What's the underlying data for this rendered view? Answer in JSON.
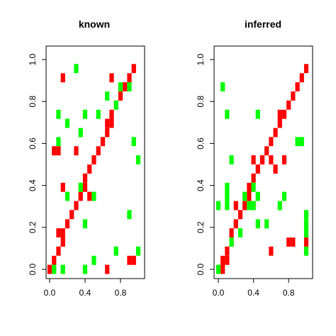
{
  "chart_data": [
    {
      "type": "heatmap",
      "title": "known",
      "xlabel": "",
      "ylabel": "",
      "xlim": [
        0,
        1
      ],
      "ylim": [
        0,
        1
      ],
      "x_ticks": [
        "0.0",
        "0.4",
        "0.8"
      ],
      "x_tick_values": [
        0.0,
        0.4,
        0.8
      ],
      "y_ticks": [
        "0.0",
        "0.2",
        "0.4",
        "0.6",
        "0.8",
        "1.0"
      ],
      "y_tick_values": [
        0.0,
        0.2,
        0.4,
        0.6,
        0.8,
        1.0
      ],
      "grid": false,
      "cell_width": 0.05,
      "cell_height": 0.0435,
      "colors": {
        "red": "#ff0000",
        "green": "#00ff00"
      },
      "cells": [
        {
          "x": 0.0,
          "y": 0.0,
          "color": "red"
        },
        {
          "x": 0.05,
          "y": 0.043,
          "color": "red"
        },
        {
          "x": 0.1,
          "y": 0.087,
          "color": "red"
        },
        {
          "x": 0.15,
          "y": 0.13,
          "color": "red"
        },
        {
          "x": 0.1,
          "y": 0.174,
          "color": "red"
        },
        {
          "x": 0.15,
          "y": 0.174,
          "color": "red"
        },
        {
          "x": 0.2,
          "y": 0.217,
          "color": "red"
        },
        {
          "x": 0.25,
          "y": 0.261,
          "color": "red"
        },
        {
          "x": 0.3,
          "y": 0.304,
          "color": "red"
        },
        {
          "x": 0.35,
          "y": 0.348,
          "color": "red"
        },
        {
          "x": 0.4,
          "y": 0.391,
          "color": "red"
        },
        {
          "x": 0.4,
          "y": 0.435,
          "color": "red"
        },
        {
          "x": 0.45,
          "y": 0.478,
          "color": "red"
        },
        {
          "x": 0.5,
          "y": 0.522,
          "color": "red"
        },
        {
          "x": 0.55,
          "y": 0.565,
          "color": "red"
        },
        {
          "x": 0.6,
          "y": 0.609,
          "color": "red"
        },
        {
          "x": 0.65,
          "y": 0.652,
          "color": "red"
        },
        {
          "x": 0.65,
          "y": 0.696,
          "color": "red"
        },
        {
          "x": 0.7,
          "y": 0.696,
          "color": "red"
        },
        {
          "x": 0.7,
          "y": 0.739,
          "color": "red"
        },
        {
          "x": 0.75,
          "y": 0.783,
          "color": "red"
        },
        {
          "x": 0.8,
          "y": 0.826,
          "color": "red"
        },
        {
          "x": 0.85,
          "y": 0.87,
          "color": "red"
        },
        {
          "x": 0.9,
          "y": 0.913,
          "color": "red"
        },
        {
          "x": 0.95,
          "y": 0.957,
          "color": "red"
        },
        {
          "x": 0.05,
          "y": 0.565,
          "color": "red"
        },
        {
          "x": 0.1,
          "y": 0.565,
          "color": "red"
        },
        {
          "x": 0.15,
          "y": 0.913,
          "color": "red"
        },
        {
          "x": 0.15,
          "y": 0.391,
          "color": "red"
        },
        {
          "x": 0.3,
          "y": 0.565,
          "color": "red"
        },
        {
          "x": 0.45,
          "y": 0.348,
          "color": "red"
        },
        {
          "x": 0.7,
          "y": 0.913,
          "color": "red"
        },
        {
          "x": 0.65,
          "y": 0.0,
          "color": "red"
        },
        {
          "x": 0.9,
          "y": 0.043,
          "color": "red"
        },
        {
          "x": 0.95,
          "y": 0.043,
          "color": "red"
        },
        {
          "x": 0.05,
          "y": 0.0,
          "color": "green"
        },
        {
          "x": 0.15,
          "y": 0.0,
          "color": "green"
        },
        {
          "x": 0.4,
          "y": 0.0,
          "color": "green"
        },
        {
          "x": 0.5,
          "y": 0.043,
          "color": "green"
        },
        {
          "x": 0.75,
          "y": 0.087,
          "color": "green"
        },
        {
          "x": 1.0,
          "y": 0.087,
          "color": "green"
        },
        {
          "x": 0.4,
          "y": 0.217,
          "color": "green"
        },
        {
          "x": 0.9,
          "y": 0.261,
          "color": "green"
        },
        {
          "x": 0.2,
          "y": 0.348,
          "color": "green"
        },
        {
          "x": 0.5,
          "y": 0.348,
          "color": "green"
        },
        {
          "x": 0.35,
          "y": 0.391,
          "color": "green"
        },
        {
          "x": 1.0,
          "y": 0.522,
          "color": "green"
        },
        {
          "x": 0.1,
          "y": 0.609,
          "color": "green"
        },
        {
          "x": 0.95,
          "y": 0.609,
          "color": "green"
        },
        {
          "x": 0.35,
          "y": 0.652,
          "color": "green"
        },
        {
          "x": 0.2,
          "y": 0.696,
          "color": "green"
        },
        {
          "x": 0.1,
          "y": 0.739,
          "color": "green"
        },
        {
          "x": 0.4,
          "y": 0.739,
          "color": "green"
        },
        {
          "x": 0.55,
          "y": 0.739,
          "color": "green"
        },
        {
          "x": 0.75,
          "y": 0.783,
          "color": "green"
        },
        {
          "x": 0.65,
          "y": 0.826,
          "color": "green"
        },
        {
          "x": 0.8,
          "y": 0.87,
          "color": "green"
        },
        {
          "x": 0.9,
          "y": 0.87,
          "color": "green"
        },
        {
          "x": 0.3,
          "y": 0.957,
          "color": "green"
        }
      ]
    },
    {
      "type": "heatmap",
      "title": "inferred",
      "xlabel": "",
      "ylabel": "",
      "xlim": [
        0,
        1
      ],
      "ylim": [
        0,
        1
      ],
      "x_ticks": [
        "0.0",
        "0.4",
        "0.8"
      ],
      "x_tick_values": [
        0.0,
        0.4,
        0.8
      ],
      "y_ticks": [
        "0.0",
        "0.2",
        "0.4",
        "0.6",
        "0.8",
        "1.0"
      ],
      "y_tick_values": [
        0.0,
        0.2,
        0.4,
        0.6,
        0.8,
        1.0
      ],
      "grid": false,
      "cell_width": 0.05,
      "cell_height": 0.0435,
      "colors": {
        "red": "#ff0000",
        "green": "#00ff00"
      },
      "cells": [
        {
          "x": 0.05,
          "y": 0.0,
          "color": "red"
        },
        {
          "x": 0.05,
          "y": 0.043,
          "color": "red"
        },
        {
          "x": 0.1,
          "y": 0.043,
          "color": "red"
        },
        {
          "x": 0.1,
          "y": 0.087,
          "color": "red"
        },
        {
          "x": 0.15,
          "y": 0.13,
          "color": "red"
        },
        {
          "x": 0.15,
          "y": 0.174,
          "color": "red"
        },
        {
          "x": 0.2,
          "y": 0.217,
          "color": "red"
        },
        {
          "x": 0.25,
          "y": 0.261,
          "color": "red"
        },
        {
          "x": 0.3,
          "y": 0.304,
          "color": "red"
        },
        {
          "x": 0.35,
          "y": 0.348,
          "color": "red"
        },
        {
          "x": 0.35,
          "y": 0.391,
          "color": "red"
        },
        {
          "x": 0.4,
          "y": 0.435,
          "color": "red"
        },
        {
          "x": 0.45,
          "y": 0.478,
          "color": "red"
        },
        {
          "x": 0.5,
          "y": 0.522,
          "color": "red"
        },
        {
          "x": 0.55,
          "y": 0.565,
          "color": "red"
        },
        {
          "x": 0.6,
          "y": 0.609,
          "color": "red"
        },
        {
          "x": 0.65,
          "y": 0.652,
          "color": "red"
        },
        {
          "x": 0.7,
          "y": 0.696,
          "color": "red"
        },
        {
          "x": 0.7,
          "y": 0.739,
          "color": "red"
        },
        {
          "x": 0.75,
          "y": 0.739,
          "color": "red"
        },
        {
          "x": 0.8,
          "y": 0.783,
          "color": "red"
        },
        {
          "x": 0.85,
          "y": 0.826,
          "color": "red"
        },
        {
          "x": 0.9,
          "y": 0.87,
          "color": "red"
        },
        {
          "x": 0.95,
          "y": 0.913,
          "color": "red"
        },
        {
          "x": 1.0,
          "y": 0.957,
          "color": "red"
        },
        {
          "x": 0.2,
          "y": 0.304,
          "color": "red"
        },
        {
          "x": 0.4,
          "y": 0.304,
          "color": "red"
        },
        {
          "x": 0.4,
          "y": 0.522,
          "color": "red"
        },
        {
          "x": 0.5,
          "y": 0.522,
          "color": "red"
        },
        {
          "x": 0.6,
          "y": 0.522,
          "color": "red"
        },
        {
          "x": 0.65,
          "y": 0.478,
          "color": "red"
        },
        {
          "x": 0.75,
          "y": 0.522,
          "color": "red"
        },
        {
          "x": 0.6,
          "y": 0.087,
          "color": "red"
        },
        {
          "x": 0.8,
          "y": 0.13,
          "color": "red"
        },
        {
          "x": 0.85,
          "y": 0.13,
          "color": "red"
        },
        {
          "x": 1.0,
          "y": 0.13,
          "color": "red"
        },
        {
          "x": 0.0,
          "y": 0.0,
          "color": "green"
        },
        {
          "x": 0.15,
          "y": 0.13,
          "color": "green"
        },
        {
          "x": 0.25,
          "y": 0.174,
          "color": "green"
        },
        {
          "x": 0.45,
          "y": 0.217,
          "color": "green"
        },
        {
          "x": 0.55,
          "y": 0.217,
          "color": "green"
        },
        {
          "x": 1.0,
          "y": 0.087,
          "color": "green"
        },
        {
          "x": 1.0,
          "y": 0.174,
          "color": "green"
        },
        {
          "x": 1.0,
          "y": 0.217,
          "color": "green"
        },
        {
          "x": 1.0,
          "y": 0.261,
          "color": "green"
        },
        {
          "x": 0.0,
          "y": 0.304,
          "color": "green"
        },
        {
          "x": 0.1,
          "y": 0.304,
          "color": "green"
        },
        {
          "x": 0.35,
          "y": 0.304,
          "color": "green"
        },
        {
          "x": 0.4,
          "y": 0.304,
          "color": "green"
        },
        {
          "x": 0.7,
          "y": 0.304,
          "color": "green"
        },
        {
          "x": 0.1,
          "y": 0.348,
          "color": "green"
        },
        {
          "x": 0.3,
          "y": 0.348,
          "color": "green"
        },
        {
          "x": 0.45,
          "y": 0.348,
          "color": "green"
        },
        {
          "x": 0.75,
          "y": 0.348,
          "color": "green"
        },
        {
          "x": 0.1,
          "y": 0.391,
          "color": "green"
        },
        {
          "x": 0.4,
          "y": 0.391,
          "color": "green"
        },
        {
          "x": 0.15,
          "y": 0.522,
          "color": "green"
        },
        {
          "x": 0.9,
          "y": 0.609,
          "color": "green"
        },
        {
          "x": 0.95,
          "y": 0.609,
          "color": "green"
        },
        {
          "x": 0.1,
          "y": 0.739,
          "color": "green"
        },
        {
          "x": 0.45,
          "y": 0.739,
          "color": "green"
        },
        {
          "x": 0.05,
          "y": 0.87,
          "color": "green"
        }
      ]
    }
  ]
}
